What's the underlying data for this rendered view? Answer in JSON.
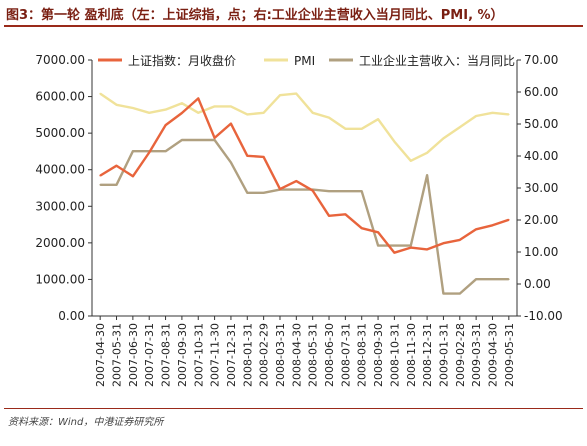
{
  "title": "图3：第一轮 盈利底（左：上证综指，点；右:工业企业主营收入当月同比、PMI, %）",
  "source": "资料来源：Wind，中港证券研究所",
  "chart_data": {
    "type": "line",
    "x": [
      "2007-04-30",
      "2007-05-31",
      "2007-06-30",
      "2007-07-31",
      "2007-08-31",
      "2007-09-30",
      "2007-10-31",
      "2007-11-30",
      "2007-12-31",
      "2008-01-31",
      "2008-02-29",
      "2008-03-31",
      "2008-04-30",
      "2008-05-31",
      "2008-06-30",
      "2008-07-31",
      "2008-08-31",
      "2008-09-30",
      "2008-10-31",
      "2008-11-30",
      "2008-12-31",
      "2009-01-31",
      "2009-02-28",
      "2009-03-31",
      "2009-04-30",
      "2009-05-31"
    ],
    "left_axis": {
      "ylim": [
        0,
        7000
      ],
      "ticks": [
        "0.00",
        "1000.00",
        "2000.00",
        "3000.00",
        "4000.00",
        "5000.00",
        "6000.00",
        "7000.00"
      ]
    },
    "right_axis": {
      "ylim": [
        -10,
        70
      ],
      "ticks": [
        "-10.00",
        "0.00",
        "10.00",
        "20.00",
        "30.00",
        "40.00",
        "50.00",
        "60.00",
        "70.00"
      ]
    },
    "series": [
      {
        "name": "上证指数：月收盘价",
        "axis": "left",
        "color": "#e8643c",
        "values": [
          3840,
          4110,
          3820,
          4470,
          5220,
          5550,
          5950,
          4870,
          5260,
          4380,
          4350,
          3470,
          3690,
          3430,
          2740,
          2780,
          2400,
          2290,
          1730,
          1870,
          1820,
          1990,
          2080,
          2370,
          2480,
          2630
        ]
      },
      {
        "name": "PMI",
        "axis": "right",
        "color": "#f0e29a",
        "values": [
          59.5,
          56.0,
          55.0,
          53.5,
          54.5,
          56.5,
          53.5,
          55.5,
          55.5,
          53.0,
          53.5,
          59.0,
          59.5,
          53.5,
          52.0,
          48.5,
          48.5,
          51.5,
          44.5,
          38.5,
          41.0,
          45.5,
          49.0,
          52.5,
          53.5,
          53.0
        ]
      },
      {
        "name": "工业企业主营收入：当月同比",
        "axis": "right",
        "color": "#b0a080",
        "values": [
          31.0,
          31.0,
          41.5,
          41.5,
          41.5,
          45.0,
          45.0,
          45.0,
          38.0,
          28.5,
          28.5,
          29.5,
          29.5,
          29.5,
          29.0,
          29.0,
          29.0,
          12.0,
          12.0,
          12.0,
          34.0,
          -3.0,
          -3.0,
          1.5,
          1.5,
          1.5
        ]
      }
    ],
    "legend": "top",
    "grid": false
  }
}
